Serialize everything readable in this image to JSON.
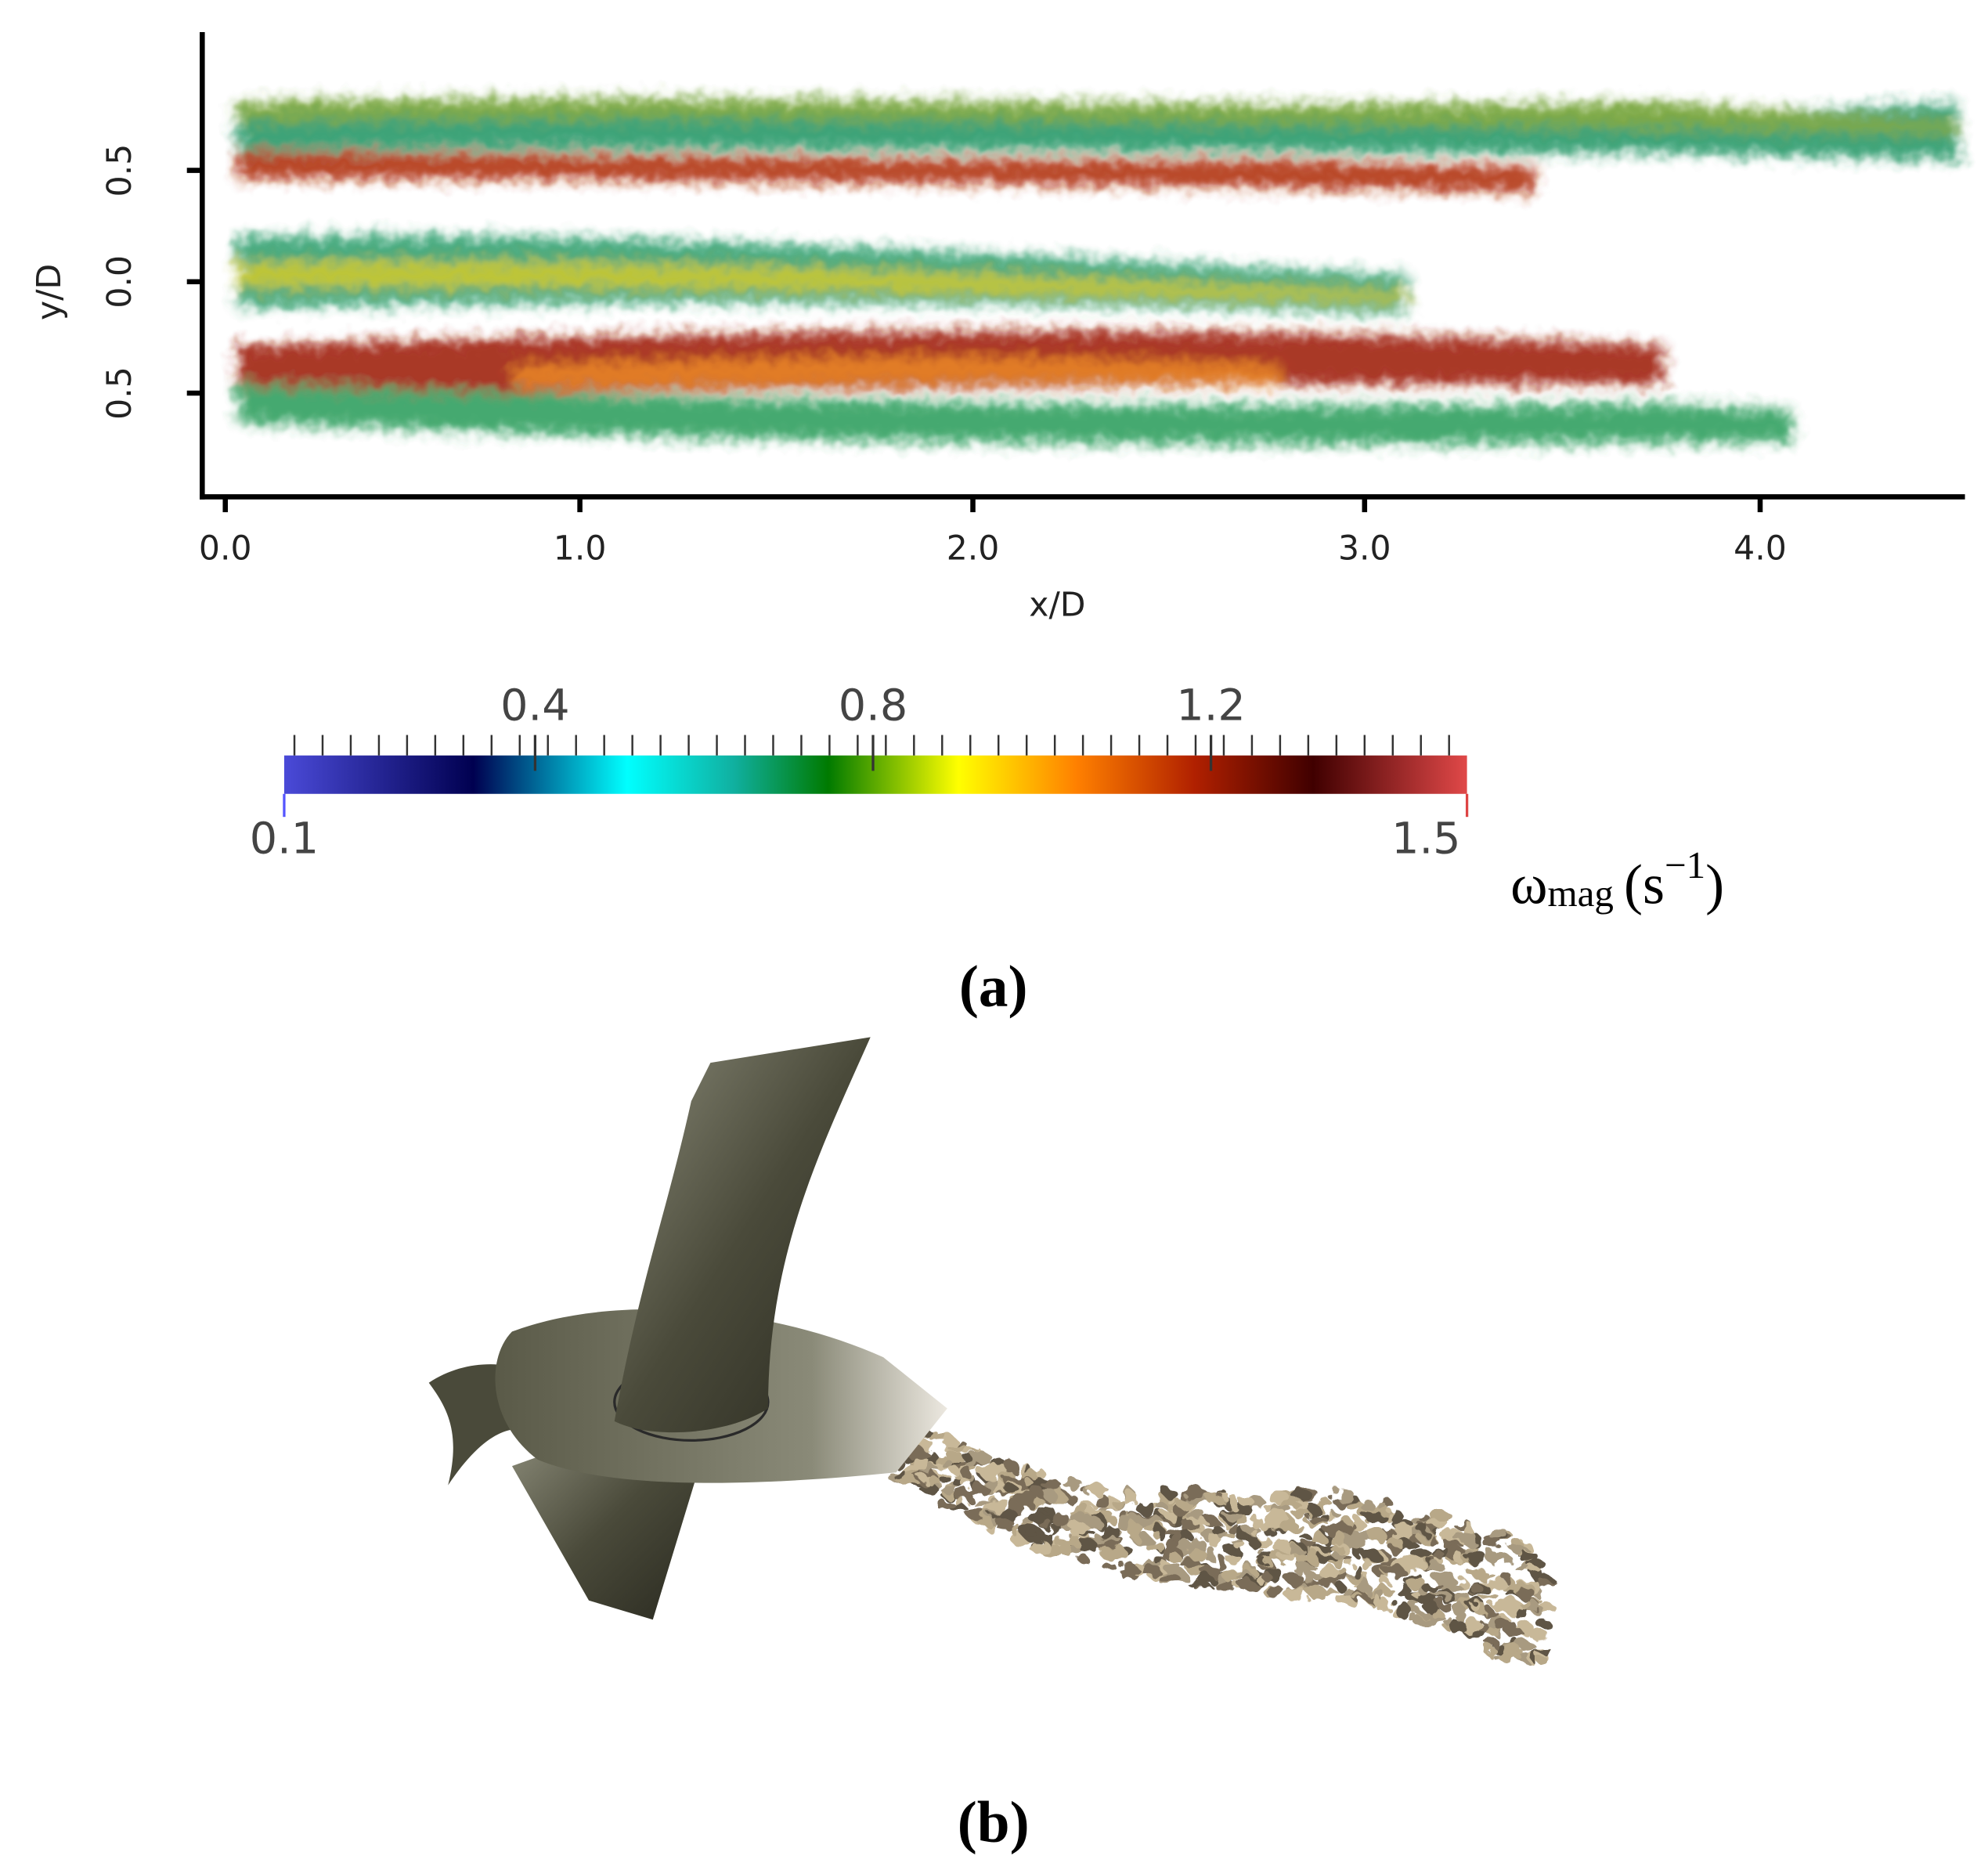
{
  "panel_a": {
    "y_label": "y/D",
    "x_label": "x/D",
    "y_ticks": [
      "0.5",
      "0.0",
      "0.5"
    ],
    "x_ticks": [
      "0.0",
      "1.0",
      "2.0",
      "3.0",
      "4.0"
    ],
    "colorbar": {
      "tick_labels": [
        "0.4",
        "0.8",
        "1.2"
      ],
      "min_label": "0.1",
      "max_label": "1.5",
      "label_parts": [
        "ω",
        "mag",
        "(s",
        "−1",
        ")"
      ]
    },
    "caption": "(a)"
  },
  "panel_b": {
    "caption": "(b)"
  }
}
